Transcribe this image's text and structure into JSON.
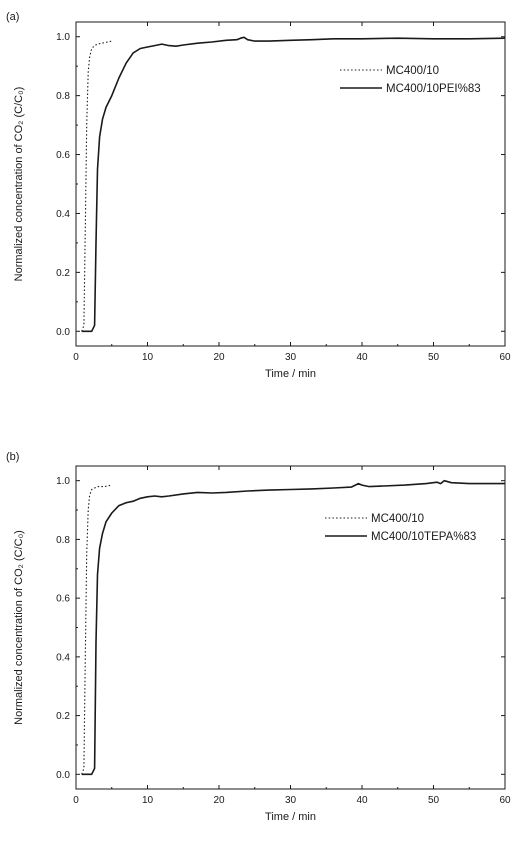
{
  "chart_data": [
    {
      "panel_label": "(a)",
      "type": "line",
      "xlabel": "Time / min",
      "ylabel": "Normalized concentration of CO₂ (C/C₀)",
      "xlim": [
        0,
        60
      ],
      "ylim": [
        -0.05,
        1.05
      ],
      "xticks": [
        0,
        10,
        20,
        30,
        40,
        50,
        60
      ],
      "yticks": [
        0.0,
        0.2,
        0.4,
        0.6,
        0.8,
        1.0
      ],
      "ytick_labels": [
        "0.0",
        "0.2",
        "0.4",
        "0.6",
        "0.8",
        "1.0"
      ],
      "grid": false,
      "legend": "top-right",
      "series": [
        {
          "name": "MC400/10",
          "style": "dotted",
          "x": [
            0.8,
            1.1,
            1.3,
            1.5,
            1.7,
            1.9,
            2.2,
            2.6,
            3.0,
            4.0,
            5.0
          ],
          "y": [
            0.0,
            0.02,
            0.35,
            0.7,
            0.88,
            0.93,
            0.96,
            0.97,
            0.975,
            0.98,
            0.985
          ]
        },
        {
          "name": "MC400/10PEI%83",
          "style": "solid",
          "x": [
            0.8,
            1.5,
            2.2,
            2.6,
            2.8,
            3.0,
            3.3,
            3.7,
            4.2,
            5.0,
            6.0,
            7.0,
            8.0,
            9.0,
            10.0,
            11.0,
            12.0,
            13.0,
            14.0,
            15.0,
            17.0,
            19.0,
            21.0,
            22.5,
            23.0,
            23.5,
            24.0,
            25.0,
            27.0,
            30.0,
            33.0,
            36.0,
            40.0,
            45.0,
            50.0,
            55.0,
            60.0
          ],
          "y": [
            0.0,
            0.0,
            0.0,
            0.02,
            0.3,
            0.55,
            0.66,
            0.72,
            0.76,
            0.8,
            0.86,
            0.91,
            0.945,
            0.96,
            0.965,
            0.97,
            0.975,
            0.97,
            0.968,
            0.972,
            0.978,
            0.982,
            0.988,
            0.99,
            0.995,
            0.998,
            0.99,
            0.985,
            0.985,
            0.988,
            0.99,
            0.993,
            0.993,
            0.995,
            0.993,
            0.993,
            0.995
          ]
        }
      ]
    },
    {
      "panel_label": "(b)",
      "type": "line",
      "xlabel": "Time / min",
      "ylabel": "Normalized concentration of CO₂ (C/C₀)",
      "xlim": [
        0,
        60
      ],
      "ylim": [
        -0.05,
        1.05
      ],
      "xticks": [
        0,
        10,
        20,
        30,
        40,
        50,
        60
      ],
      "yticks": [
        0.0,
        0.2,
        0.4,
        0.6,
        0.8,
        1.0
      ],
      "ytick_labels": [
        "0.0",
        "0.2",
        "0.4",
        "0.6",
        "0.8",
        "1.0"
      ],
      "grid": false,
      "legend": "top-right",
      "series": [
        {
          "name": "MC400/10",
          "style": "dotted",
          "x": [
            0.8,
            1.1,
            1.3,
            1.5,
            1.7,
            1.9,
            2.2,
            2.6,
            3.0,
            4.0,
            5.0
          ],
          "y": [
            0.0,
            0.02,
            0.4,
            0.75,
            0.9,
            0.95,
            0.97,
            0.975,
            0.98,
            0.98,
            0.985
          ]
        },
        {
          "name": "MC400/10TEPA%83",
          "style": "solid",
          "x": [
            0.8,
            1.5,
            2.2,
            2.6,
            2.8,
            3.0,
            3.3,
            3.7,
            4.2,
            5.0,
            6.0,
            7.0,
            8.0,
            9.0,
            10.0,
            11.0,
            12.0,
            13.0,
            15.0,
            17.0,
            19.0,
            21.0,
            24.0,
            27.0,
            30.0,
            33.0,
            36.0,
            38.5,
            39.5,
            40.0,
            41.0,
            43.0,
            46.0,
            49.0,
            50.5,
            51.0,
            51.5,
            52.5,
            55.0,
            58.0,
            60.0
          ],
          "y": [
            0.0,
            0.0,
            0.0,
            0.02,
            0.45,
            0.68,
            0.77,
            0.82,
            0.86,
            0.89,
            0.915,
            0.925,
            0.93,
            0.94,
            0.945,
            0.948,
            0.945,
            0.948,
            0.955,
            0.96,
            0.958,
            0.96,
            0.965,
            0.968,
            0.97,
            0.972,
            0.975,
            0.978,
            0.99,
            0.985,
            0.98,
            0.982,
            0.985,
            0.99,
            0.995,
            0.99,
            1.0,
            0.993,
            0.99,
            0.99,
            0.99
          ]
        }
      ]
    }
  ]
}
